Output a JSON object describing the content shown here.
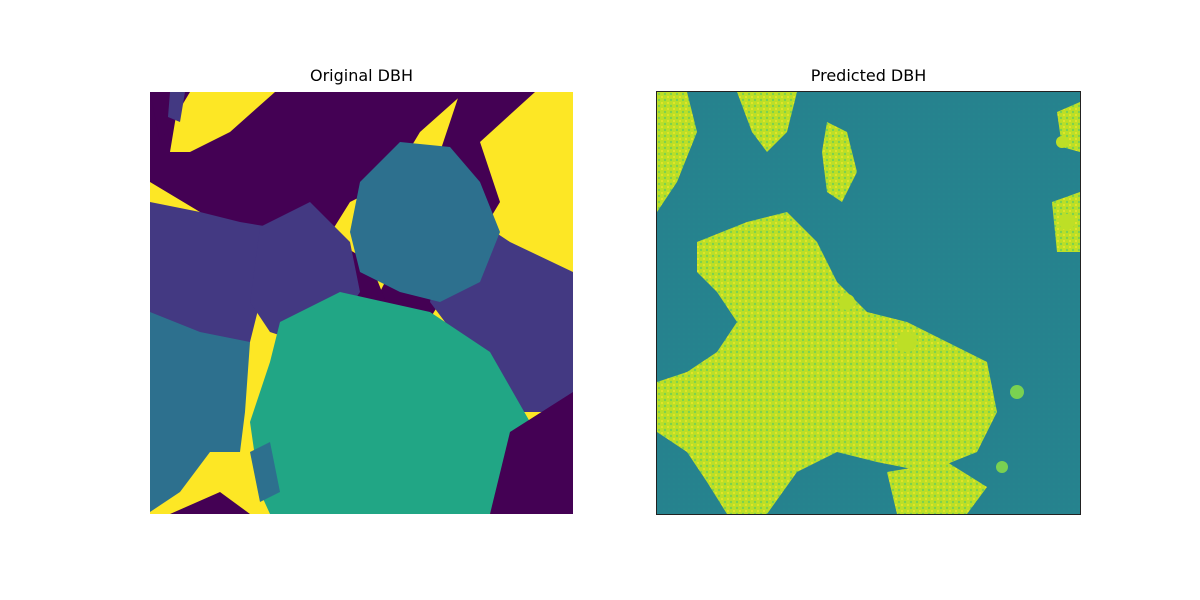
{
  "chart_data": [
    {
      "type": "heatmap",
      "title": "Original DBH",
      "colormap": "viridis",
      "axes_visible": false,
      "description_colors": [
        "#440154",
        "#443983",
        "#2c718e",
        "#21a585",
        "#fde725"
      ]
    },
    {
      "type": "heatmap",
      "title": "Predicted DBH",
      "colormap": "viridis",
      "axes_visible": false,
      "description_colors": [
        "#2a788e",
        "#21908d",
        "#5ec962",
        "#bddf26",
        "#fde725"
      ]
    }
  ],
  "colors": {
    "v0": "#440154",
    "v1": "#433982",
    "v2": "#2d708e",
    "v3": "#21a685",
    "v4": "#fde725",
    "teal": "#297b8e",
    "teal2": "#24878e",
    "green": "#7ad151",
    "lime": "#bddf26"
  }
}
